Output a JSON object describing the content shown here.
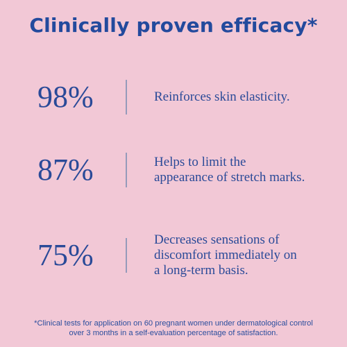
{
  "title": "Clinically proven efficacy*",
  "stats": [
    {
      "percent": "98%",
      "lines": [
        "Reinforces skin elasticity."
      ]
    },
    {
      "percent": "87%",
      "lines": [
        "Helps to limit the",
        "appearance of stretch marks."
      ]
    },
    {
      "percent": "75%",
      "lines": [
        "Decreases sensations of",
        "discomfort immediately on",
        "a long-term basis."
      ]
    }
  ],
  "footnote": {
    "lines": [
      "*Clinical tests for application on 60 pregnant women under dermatological control",
      "over 3 months in a self-evaluation percentage of satisfaction."
    ]
  },
  "colors": {
    "background": "#f2c8d6",
    "accent": "#234a9d",
    "divider": "#8f98b8"
  }
}
